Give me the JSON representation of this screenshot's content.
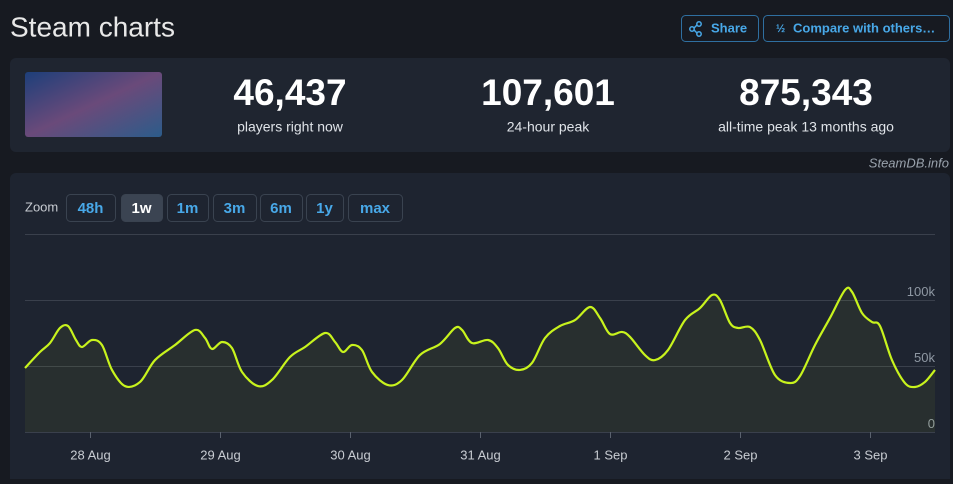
{
  "header": {
    "title": "Steam charts",
    "buttons": [
      "Share",
      "Compare with others…"
    ]
  },
  "stats": [
    {
      "value": "46,437",
      "label": "players right now"
    },
    {
      "value": "107,601",
      "label": "24-hour peak"
    },
    {
      "value": "875,343",
      "label": "all-time peak 13 months ago"
    }
  ],
  "source": "SteamDB.info",
  "zoom": {
    "label": "Zoom",
    "options": [
      "48h",
      "1w",
      "1m",
      "3m",
      "6m",
      "1y",
      "max"
    ],
    "active": "1w"
  },
  "chart_data": {
    "type": "line",
    "x": [
      -0.5,
      -0.385,
      -0.308,
      -0.231,
      -0.169,
      -0.108,
      -0.062,
      0.015,
      0.092,
      0.169,
      0.269,
      0.385,
      0.5,
      0.654,
      0.808,
      0.885,
      0.938,
      1.015,
      1.092,
      1.169,
      1.292,
      1.4,
      1.538,
      1.654,
      1.808,
      1.885,
      1.946,
      2.015,
      2.092,
      2.169,
      2.292,
      2.4,
      2.538,
      2.692,
      2.808,
      2.862,
      2.938,
      3.062,
      3.138,
      3.215,
      3.308,
      3.4,
      3.5,
      3.615,
      3.731,
      3.846,
      3.923,
      4.0,
      4.092,
      4.154,
      4.269,
      4.346,
      4.446,
      4.577,
      4.692,
      4.785,
      4.846,
      4.923,
      4.985,
      5.077,
      5.154,
      5.269,
      5.385,
      5.462,
      5.577,
      5.692,
      5.808,
      5.862,
      5.938,
      6.015,
      6.077,
      6.169,
      6.269,
      6.346,
      6.423,
      6.5
    ],
    "series": [
      {
        "color": "#c8f31d",
        "values": [
          48500,
          60600,
          67400,
          78800,
          80300,
          69700,
          64400,
          69700,
          65900,
          47000,
          34800,
          37900,
          54500,
          65900,
          77300,
          71200,
          62900,
          68200,
          63600,
          45500,
          34800,
          39400,
          56800,
          64400,
          75000,
          68200,
          60600,
          65900,
          62100,
          45500,
          35600,
          39400,
          58300,
          66700,
          78800,
          77300,
          67400,
          69700,
          63600,
          50800,
          47000,
          52300,
          71200,
          80300,
          84800,
          94700,
          86400,
          74200,
          75800,
          72000,
          58300,
          54500,
          62100,
          84800,
          93900,
          103800,
          100000,
          82600,
          78800,
          79500,
          69700,
          43200,
          37100,
          42400,
          65900,
          86400,
          107600,
          106100,
          90200,
          83300,
          80300,
          54500,
          37100,
          34100,
          37900,
          47000
        ]
      }
    ],
    "xlim": [
      -0.5,
      6.5
    ],
    "xticks": [
      {
        "value": 0,
        "label": "28 Aug"
      },
      {
        "value": 1,
        "label": "29 Aug"
      },
      {
        "value": 2,
        "label": "30 Aug"
      },
      {
        "value": 3,
        "label": "31 Aug"
      },
      {
        "value": 4,
        "label": "1 Sep"
      },
      {
        "value": 5,
        "label": "2 Sep"
      },
      {
        "value": 6,
        "label": "3 Sep"
      }
    ],
    "ylim": [
      0,
      150000
    ],
    "yticks": [
      0,
      {
        "value": 50000,
        "label": "50k"
      },
      {
        "value": 100000,
        "label": "100k"
      }
    ],
    "grid": true
  }
}
